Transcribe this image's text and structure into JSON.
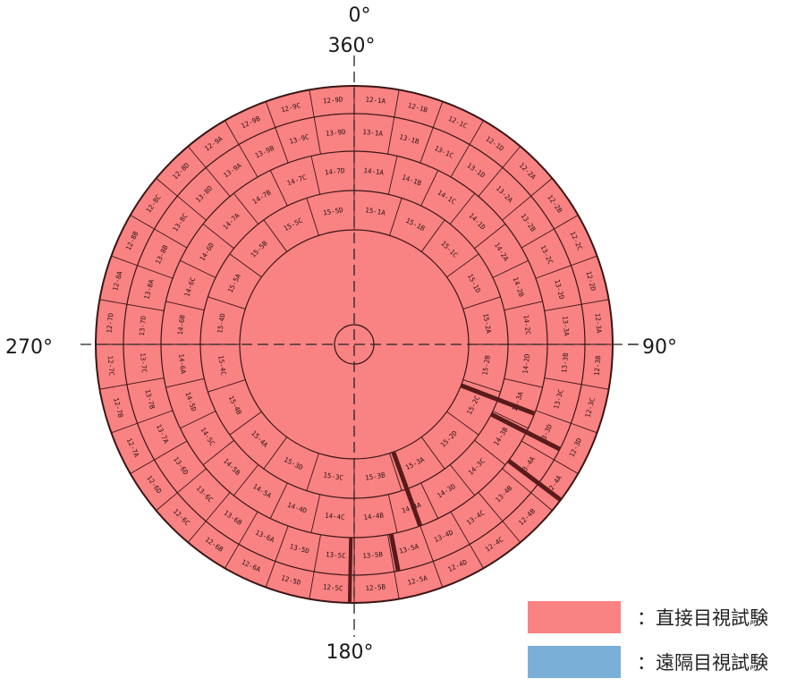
{
  "angle_labels": {
    "top_0": "0°",
    "top_360": "360°",
    "right_90": "90°",
    "left_270": "270°",
    "bottom_180": "180°"
  },
  "colors": {
    "direct": "#f98283",
    "remote": "#7aafd8",
    "line": "#3a1616",
    "bar": "#5a1a1a"
  },
  "rings": {
    "ring1": [
      "12-1A",
      "12-1B",
      "12-1C",
      "12-1D",
      "12-2A",
      "12-2B",
      "12-2C",
      "12-2D",
      "12-3A",
      "12-3B",
      "12-3C",
      "12-3D",
      "12-4A",
      "12-4B",
      "12-4C",
      "12-4D",
      "12-5A",
      "12-5B",
      "12-5C",
      "12-5D",
      "12-6A",
      "12-6B",
      "12-6C",
      "12-6D",
      "12-7A",
      "12-7B",
      "12-7C",
      "12-7D",
      "12-8A",
      "12-8B",
      "12-8C",
      "12-8D",
      "12-9A",
      "12-9B",
      "12-9C",
      "12-9D"
    ],
    "ring2": [
      "13-1A",
      "13-1B",
      "13-1C",
      "13-1D",
      "13-2A",
      "13-2B",
      "13-2C",
      "13-2D",
      "13-3A",
      "13-3B",
      "13-3C",
      "13-3D",
      "13-4A",
      "13-4B",
      "13-4C",
      "13-4D",
      "13-5A",
      "13-5B",
      "13-5C",
      "13-5D",
      "13-6A",
      "13-6B",
      "13-6C",
      "13-6D",
      "13-7A",
      "13-7B",
      "13-7C",
      "13-7D",
      "13-8A",
      "13-8B",
      "13-8C",
      "13-8D",
      "13-9A",
      "13-9B",
      "13-9C",
      "13-9D"
    ],
    "ring3": [
      "14-1A",
      "14-1B",
      "14-1C",
      "14-1D",
      "14-2A",
      "14-2B",
      "14-2C",
      "14-2D",
      "14-3A",
      "14-3B",
      "14-3C",
      "14-3D",
      "14-4A",
      "14-4B",
      "14-4C",
      "14-4D",
      "14-5A",
      "14-5B",
      "14-5C",
      "14-5D",
      "14-6A",
      "14-6B",
      "14-6C",
      "14-6D",
      "14-7A",
      "14-7B",
      "14-7C",
      "14-7D"
    ],
    "ring4": [
      "15-1A",
      "15-1B",
      "15-1C",
      "15-1D",
      "15-2A",
      "15-2B",
      "15-2C",
      "15-2D",
      "15-3A",
      "15-3B",
      "15-3C",
      "15-3D",
      "15-4A",
      "15-4B",
      "15-4C",
      "15-4D",
      "15-5A",
      "15-5B",
      "15-5C",
      "15-5D"
    ]
  },
  "legend": [
    {
      "key": "direct",
      "label": "：直接目視試験"
    },
    {
      "key": "remote",
      "label": "：遠隔目視試験"
    }
  ]
}
